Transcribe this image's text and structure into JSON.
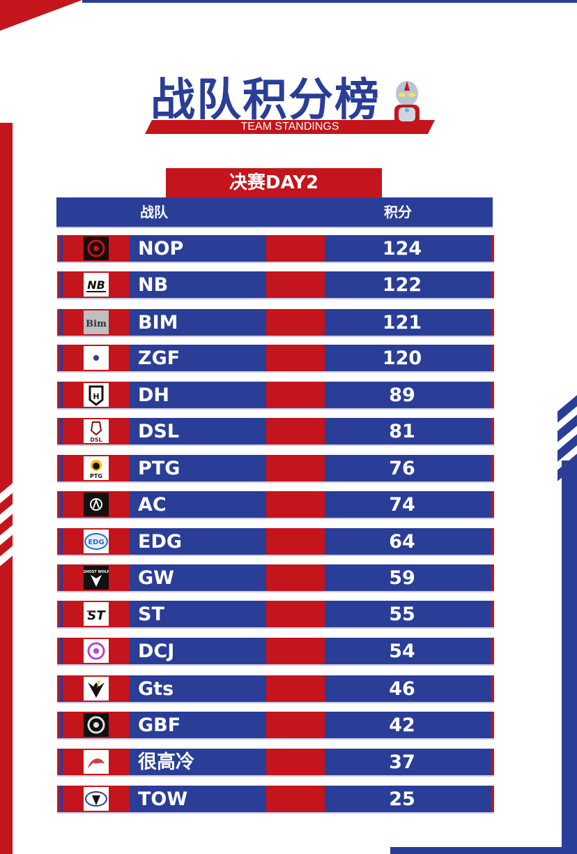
{
  "header": {
    "title": "战队积分榜",
    "subtitle": "TEAM STANDINGS"
  },
  "stage": {
    "label": "决赛DAY2"
  },
  "table": {
    "columns": [
      "战队",
      "积分"
    ],
    "rows": [
      {
        "team": "NOP",
        "score": "124",
        "logo": "nop-logo"
      },
      {
        "team": "NB",
        "score": "122",
        "logo": "nb-logo"
      },
      {
        "team": "BIM",
        "score": "121",
        "logo": "bim-logo"
      },
      {
        "team": "ZGF",
        "score": "120",
        "logo": "zgf-logo"
      },
      {
        "team": "DH",
        "score": "89",
        "logo": "dh-logo"
      },
      {
        "team": "DSL",
        "score": "81",
        "logo": "dsl-logo"
      },
      {
        "team": "PTG",
        "score": "76",
        "logo": "ptg-logo"
      },
      {
        "team": "AC",
        "score": "74",
        "logo": "ac-logo"
      },
      {
        "team": "EDG",
        "score": "64",
        "logo": "edg-logo"
      },
      {
        "team": "GW",
        "score": "59",
        "logo": "gw-logo"
      },
      {
        "team": "ST",
        "score": "55",
        "logo": "st-logo"
      },
      {
        "team": "DCJ",
        "score": "54",
        "logo": "dcj-logo"
      },
      {
        "team": "Gts",
        "score": "46",
        "logo": "gts-logo"
      },
      {
        "team": "GBF",
        "score": "42",
        "logo": "gbf-logo"
      },
      {
        "team": "很高冷",
        "score": "37",
        "logo": "hgl-logo"
      },
      {
        "team": "TOW",
        "score": "25",
        "logo": "tow-logo"
      }
    ]
  },
  "colors": {
    "brand_red": "#c4141c",
    "brand_blue": "#2a3e97",
    "background": "#ffffff"
  }
}
